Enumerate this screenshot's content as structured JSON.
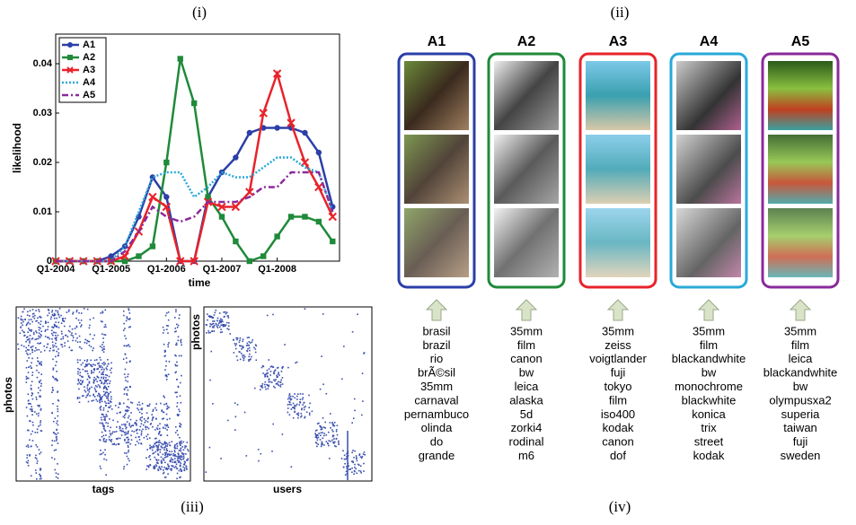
{
  "panel_labels": [
    "(i)",
    "(ii)",
    "(iii)",
    "(iv)"
  ],
  "chart_data": {
    "type": "line",
    "xlabel": "time",
    "ylabel": "likelihood",
    "categories": [
      "Q1-2004",
      null,
      null,
      null,
      "Q1-2005",
      null,
      null,
      null,
      "Q1-2006",
      null,
      null,
      null,
      "Q1-2007",
      null,
      null,
      null,
      "Q1-2008",
      null,
      null,
      null,
      null
    ],
    "ylim": [
      0,
      0.046
    ],
    "yticks": [
      0,
      0.01,
      0.02,
      0.03,
      0.04
    ],
    "legend": "upper left",
    "series": [
      {
        "name": "A1",
        "color": "#2b3fa8",
        "linestyle": "solid",
        "marker": "circle",
        "values": [
          0,
          0,
          0,
          0,
          0.001,
          0.003,
          0.009,
          0.017,
          0.013,
          0,
          0,
          0.013,
          0.018,
          0.021,
          0.026,
          0.027,
          0.027,
          0.027,
          0.026,
          0.022,
          0.011
        ]
      },
      {
        "name": "A2",
        "color": "#1f8a3a",
        "linestyle": "solid",
        "marker": "square",
        "values": [
          0,
          0,
          0,
          0,
          0,
          0,
          0.001,
          0.003,
          0.02,
          0.041,
          0.032,
          0.013,
          0.009,
          0.004,
          0,
          0.001,
          0.005,
          0.009,
          0.009,
          0.008,
          0.004
        ]
      },
      {
        "name": "A3",
        "color": "#e8232a",
        "linestyle": "solid",
        "marker": "x",
        "values": [
          0,
          0,
          0,
          0,
          0,
          0.001,
          0.006,
          0.013,
          0.011,
          0,
          0,
          0.012,
          0.011,
          0.011,
          0.014,
          0.03,
          0.038,
          0.028,
          0.02,
          0.015,
          0.009
        ]
      },
      {
        "name": "A4",
        "color": "#29a9d8",
        "linestyle": "dotted",
        "marker": "none",
        "values": [
          0,
          0,
          0,
          0,
          0,
          0.003,
          0.01,
          0.017,
          0.018,
          0.018,
          0.013,
          0.015,
          0.018,
          0.017,
          0.017,
          0.019,
          0.021,
          0.021,
          0.019,
          0.018,
          0.01
        ]
      },
      {
        "name": "A5",
        "color": "#8a2a9a",
        "linestyle": "dashdot",
        "marker": "none",
        "values": [
          0,
          0,
          0,
          0,
          0,
          0.002,
          0.006,
          0.011,
          0.009,
          0.008,
          0.009,
          0.012,
          0.012,
          0.012,
          0.013,
          0.015,
          0.015,
          0.018,
          0.018,
          0.018,
          0.01
        ]
      }
    ]
  },
  "matrices": [
    {
      "ylabel": "photos",
      "xlabel": "tags"
    },
    {
      "ylabel": "photos",
      "xlabel": "users"
    }
  ],
  "clusters": [
    {
      "name": "A1",
      "color": "#2b3fa8",
      "tags": [
        "brasil",
        "brazil",
        "rio",
        "brÃ©sil",
        "35mm",
        "carnaval",
        "pernambuco",
        "olinda",
        "do",
        "grande"
      ]
    },
    {
      "name": "A2",
      "color": "#1f8a3a",
      "tags": [
        "35mm",
        "film",
        "canon",
        "bw",
        "leica",
        "alaska",
        "5d",
        "zorki4",
        "rodinal",
        "m6"
      ]
    },
    {
      "name": "A3",
      "color": "#e8232a",
      "tags": [
        "35mm",
        "zeiss",
        "voigtlander",
        "fuji",
        "tokyo",
        "film",
        "iso400",
        "kodak",
        "canon",
        "dof"
      ]
    },
    {
      "name": "A4",
      "color": "#29a9d8",
      "tags": [
        "35mm",
        "film",
        "blackandwhite",
        "bw",
        "monochrome",
        "blackwhite",
        "konica",
        "trix",
        "street",
        "kodak"
      ]
    },
    {
      "name": "A5",
      "color": "#8a2a9a",
      "tags": [
        "35mm",
        "film",
        "leica",
        "blackandwhite",
        "bw",
        "olympusxa2",
        "superia",
        "taiwan",
        "fuji",
        "sweden"
      ]
    }
  ]
}
